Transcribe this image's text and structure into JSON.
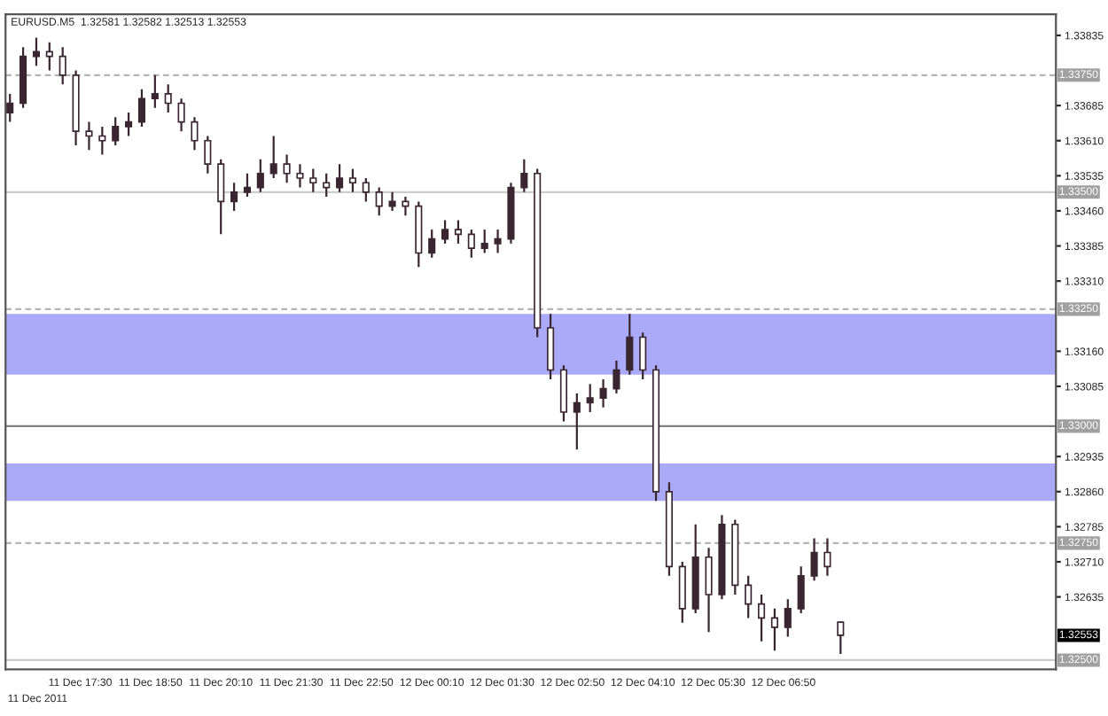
{
  "chart_data": {
    "type": "candlestick",
    "title": "EURUSD.M5  1.32581 1.32582 1.32513 1.32553",
    "x": [
      "2011-12-11T16:10",
      "2011-12-11T16:25",
      "2011-12-11T16:40",
      "2011-12-11T16:55",
      "2011-12-11T17:10",
      "2011-12-11T17:25",
      "2011-12-11T17:40",
      "2011-12-11T17:55",
      "2011-12-11T18:10",
      "2011-12-11T18:25",
      "2011-12-11T18:40",
      "2011-12-11T18:55",
      "2011-12-11T19:10",
      "2011-12-11T19:25",
      "2011-12-11T19:40",
      "2011-12-11T19:55",
      "2011-12-11T20:10",
      "2011-12-11T20:25",
      "2011-12-11T20:40",
      "2011-12-11T20:55",
      "2011-12-11T21:10",
      "2011-12-11T21:25",
      "2011-12-11T21:40",
      "2011-12-11T21:55",
      "2011-12-11T22:10",
      "2011-12-11T22:25",
      "2011-12-11T22:40",
      "2011-12-11T22:55",
      "2011-12-11T23:10",
      "2011-12-11T23:25",
      "2011-12-11T23:40",
      "2011-12-11T23:55",
      "2011-12-12T00:10",
      "2011-12-12T00:25",
      "2011-12-12T00:40",
      "2011-12-12T00:55",
      "2011-12-12T01:10",
      "2011-12-12T01:25",
      "2011-12-12T01:40",
      "2011-12-12T01:55",
      "2011-12-12T02:10",
      "2011-12-12T02:25",
      "2011-12-12T02:40",
      "2011-12-12T02:55",
      "2011-12-12T03:10",
      "2011-12-12T03:25",
      "2011-12-12T03:40",
      "2011-12-12T03:55",
      "2011-12-12T04:10",
      "2011-12-12T04:25",
      "2011-12-12T04:40",
      "2011-12-12T04:55",
      "2011-12-12T05:10",
      "2011-12-12T05:25",
      "2011-12-12T05:40",
      "2011-12-12T05:55",
      "2011-12-12T06:10",
      "2011-12-12T06:25",
      "2011-12-12T06:40",
      "2011-12-12T06:55",
      "2011-12-12T07:10",
      "2011-12-12T07:25",
      "2011-12-12T07:40",
      "2011-12-12T07:55"
    ],
    "ohlc": [
      [
        1.3367,
        1.3371,
        1.3365,
        1.3369
      ],
      [
        1.3369,
        1.3381,
        1.3368,
        1.3379
      ],
      [
        1.3379,
        1.3383,
        1.3377,
        1.338
      ],
      [
        1.338,
        1.3382,
        1.3376,
        1.3379
      ],
      [
        1.3379,
        1.3381,
        1.3373,
        1.3375
      ],
      [
        1.3375,
        1.3376,
        1.336,
        1.3363
      ],
      [
        1.3363,
        1.3365,
        1.3359,
        1.3362
      ],
      [
        1.3362,
        1.3364,
        1.3358,
        1.3361
      ],
      [
        1.3361,
        1.3366,
        1.336,
        1.3364
      ],
      [
        1.3364,
        1.3367,
        1.3362,
        1.3365
      ],
      [
        1.3365,
        1.3372,
        1.3364,
        1.337
      ],
      [
        1.337,
        1.3375,
        1.3368,
        1.3371
      ],
      [
        1.3371,
        1.3373,
        1.3367,
        1.3369
      ],
      [
        1.3369,
        1.337,
        1.3363,
        1.3365
      ],
      [
        1.3365,
        1.3366,
        1.3359,
        1.3361
      ],
      [
        1.3361,
        1.3362,
        1.3354,
        1.3356
      ],
      [
        1.3356,
        1.3357,
        1.3341,
        1.3348
      ],
      [
        1.3348,
        1.3352,
        1.3346,
        1.335
      ],
      [
        1.335,
        1.3354,
        1.3349,
        1.3351
      ],
      [
        1.3351,
        1.3357,
        1.335,
        1.3354
      ],
      [
        1.3354,
        1.3362,
        1.3353,
        1.3356
      ],
      [
        1.3356,
        1.3358,
        1.3352,
        1.3354
      ],
      [
        1.3354,
        1.3356,
        1.3351,
        1.3353
      ],
      [
        1.3353,
        1.3355,
        1.335,
        1.3352
      ],
      [
        1.3352,
        1.3354,
        1.3349,
        1.3351
      ],
      [
        1.3351,
        1.3356,
        1.335,
        1.3353
      ],
      [
        1.3353,
        1.3355,
        1.335,
        1.3352
      ],
      [
        1.3352,
        1.3353,
        1.3348,
        1.335
      ],
      [
        1.335,
        1.3351,
        1.3345,
        1.3347
      ],
      [
        1.3347,
        1.335,
        1.3346,
        1.3348
      ],
      [
        1.3348,
        1.3349,
        1.3345,
        1.3347
      ],
      [
        1.3347,
        1.3348,
        1.3334,
        1.3337
      ],
      [
        1.3337,
        1.3342,
        1.3336,
        1.334
      ],
      [
        1.334,
        1.3344,
        1.3339,
        1.3342
      ],
      [
        1.3342,
        1.3344,
        1.3339,
        1.3341
      ],
      [
        1.3341,
        1.3342,
        1.3336,
        1.3338
      ],
      [
        1.3338,
        1.3342,
        1.3337,
        1.3339
      ],
      [
        1.3339,
        1.3342,
        1.3337,
        1.334
      ],
      [
        1.334,
        1.3352,
        1.3339,
        1.3351
      ],
      [
        1.3351,
        1.3357,
        1.335,
        1.3354
      ],
      [
        1.3354,
        1.3355,
        1.3319,
        1.3321
      ],
      [
        1.3321,
        1.3324,
        1.331,
        1.3312
      ],
      [
        1.3312,
        1.3313,
        1.3301,
        1.3303
      ],
      [
        1.3303,
        1.3307,
        1.3295,
        1.3305
      ],
      [
        1.3305,
        1.3309,
        1.3303,
        1.3306
      ],
      [
        1.3306,
        1.331,
        1.3304,
        1.3308
      ],
      [
        1.3308,
        1.3314,
        1.3307,
        1.3312
      ],
      [
        1.3312,
        1.3324,
        1.3311,
        1.3319
      ],
      [
        1.3319,
        1.332,
        1.331,
        1.3312
      ],
      [
        1.3312,
        1.3313,
        1.3284,
        1.3286
      ],
      [
        1.3286,
        1.3288,
        1.3268,
        1.327
      ],
      [
        1.327,
        1.3271,
        1.3258,
        1.3261
      ],
      [
        1.3261,
        1.3279,
        1.326,
        1.3272
      ],
      [
        1.3272,
        1.3274,
        1.3256,
        1.3264
      ],
      [
        1.3264,
        1.3281,
        1.3263,
        1.3279
      ],
      [
        1.3279,
        1.328,
        1.3264,
        1.3266
      ],
      [
        1.3266,
        1.3268,
        1.3259,
        1.3262
      ],
      [
        1.3262,
        1.3264,
        1.3254,
        1.3259
      ],
      [
        1.3259,
        1.3261,
        1.3252,
        1.3257
      ],
      [
        1.3257,
        1.3263,
        1.3255,
        1.3261
      ],
      [
        1.3261,
        1.327,
        1.326,
        1.3268
      ],
      [
        1.3268,
        1.3276,
        1.3267,
        1.3273
      ],
      [
        1.3273,
        1.3276,
        1.3268,
        1.327
      ],
      [
        1.32581,
        1.32582,
        1.32513,
        1.32553
      ]
    ],
    "color": "#3a2630",
    "xlim": [
      "2011-12-11T16:05",
      "2011-12-12T12:00"
    ],
    "xticks": [
      {
        "value": "2011-12-11T17:30",
        "label": "11 Dec 17:30"
      },
      {
        "value": "2011-12-11T18:50",
        "label": "11 Dec 18:50"
      },
      {
        "value": "2011-12-11T20:10",
        "label": "11 Dec 20:10"
      },
      {
        "value": "2011-12-11T21:30",
        "label": "11 Dec 21:30"
      },
      {
        "value": "2011-12-11T22:50",
        "label": "11 Dec 22:50"
      },
      {
        "value": "2011-12-12T00:10",
        "label": "12 Dec 00:10"
      },
      {
        "value": "2011-12-12T01:30",
        "label": "12 Dec 01:30"
      },
      {
        "value": "2011-12-12T02:50",
        "label": "12 Dec 02:50"
      },
      {
        "value": "2011-12-12T04:10",
        "label": "12 Dec 04:10"
      },
      {
        "value": "2011-12-12T05:30",
        "label": "12 Dec 05:30"
      },
      {
        "value": "2011-12-12T06:50",
        "label": "12 Dec 06:50"
      }
    ],
    "ylim": [
      1.3248,
      1.3388
    ],
    "yticks": [
      1.33835,
      1.33685,
      {
        "value": 1.3361,
        "label": "1.33610"
      },
      1.33535,
      {
        "value": 1.3346,
        "label": "1.33460"
      },
      1.33385,
      {
        "value": 1.3331,
        "label": "1.33310"
      },
      {
        "value": 1.3316,
        "label": "1.33160"
      },
      1.33085,
      1.32935,
      {
        "value": 1.3286,
        "label": "1.32860"
      },
      1.32785,
      {
        "value": 1.3271,
        "label": "1.32710"
      },
      1.32635
    ],
    "ref_lines": [
      {
        "axis": "y",
        "value": 1.3375,
        "label": "1.33750",
        "color": "#b4b4b4",
        "line_style": "dashed"
      },
      {
        "axis": "y",
        "value": 1.335,
        "label": "1.33500",
        "color": "#cccccc",
        "line_style": "solid"
      },
      {
        "axis": "y",
        "value": 1.3325,
        "label": "1.33250",
        "color": "#b4b4b4",
        "line_style": "dashed"
      },
      {
        "axis": "y",
        "value": 1.33,
        "label": "1.33000",
        "color": "#808080",
        "line_style": "solid"
      },
      {
        "axis": "y",
        "value": 1.3275,
        "label": "1.32750",
        "color": "#b4b4b4",
        "line_style": "dashed"
      },
      {
        "axis": "y",
        "value": 1.325,
        "label": "1.32500",
        "color": "#cccccc",
        "line_style": "solid"
      }
    ],
    "bands": [
      {
        "axis": "y",
        "from": 1.3311,
        "to": 1.3324,
        "color": "#aaaaf8"
      },
      {
        "axis": "y",
        "from": 1.3284,
        "to": 1.3292,
        "color": "#aaaaf8"
      }
    ],
    "annotations": [
      "11 Dec 2011",
      "1.32553"
    ],
    "grid": false
  }
}
